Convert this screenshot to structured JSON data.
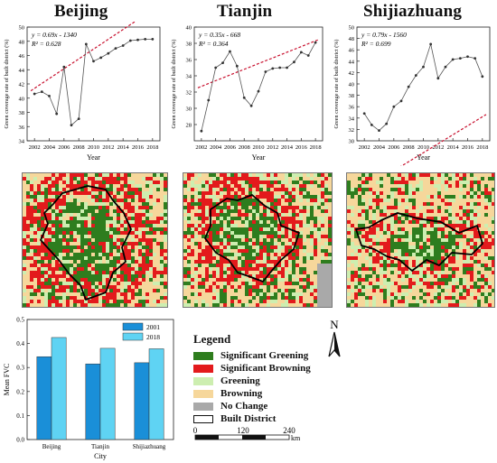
{
  "colors": {
    "sig_greening": "#2e7d1e",
    "sig_browning": "#e31a1c",
    "greening": "#cdeeb0",
    "browning": "#f6d79b",
    "no_change": "#a9a9a9",
    "trend": "#c8102e",
    "series_line": "#555555",
    "bar_2001": "#1a8fd8",
    "bar_2018": "#5fd3f3"
  },
  "panels": [
    {
      "title": "Beijing",
      "equation": "y = 0.69x - 1340",
      "r2": "R² = 0.628"
    },
    {
      "title": "Tianjin",
      "equation": "y = 0.35x - 668",
      "r2": "R² = 0.364"
    },
    {
      "title": "Shijiazhuang",
      "equation": "y = 0.79x - 1560",
      "r2": "R² = 0.699"
    }
  ],
  "chart_data": [
    {
      "type": "line",
      "title": "Beijing",
      "xlabel": "Year",
      "ylabel": "Green coverage rate of built district (%)",
      "xlim": [
        2001,
        2019
      ],
      "ylim": [
        34,
        50
      ],
      "xticks": [
        2002,
        2004,
        2006,
        2008,
        2010,
        2012,
        2014,
        2016,
        2018
      ],
      "yticks": [
        34,
        36,
        38,
        40,
        42,
        44,
        46,
        48,
        50
      ],
      "x": [
        2002,
        2003,
        2004,
        2005,
        2006,
        2007,
        2008,
        2009,
        2010,
        2011,
        2012,
        2013,
        2014,
        2015,
        2016,
        2017,
        2018
      ],
      "y": [
        40.6,
        40.9,
        40.3,
        37.8,
        44.4,
        36.2,
        37.1,
        47.6,
        45.2,
        45.7,
        46.3,
        47.0,
        47.4,
        48.1,
        48.2,
        48.3,
        48.3
      ],
      "trend": {
        "slope": 0.69,
        "intercept": -1340
      },
      "grid": false
    },
    {
      "type": "line",
      "title": "Tianjin",
      "xlabel": "Year",
      "ylabel": "Green coverage rate of built district (%)",
      "xlim": [
        2001,
        2019
      ],
      "ylim": [
        26,
        40
      ],
      "xticks": [
        2002,
        2004,
        2006,
        2008,
        2010,
        2012,
        2014,
        2016,
        2018
      ],
      "yticks": [
        28,
        30,
        32,
        34,
        36,
        38,
        40
      ],
      "x": [
        2002,
        2003,
        2004,
        2005,
        2006,
        2007,
        2008,
        2009,
        2010,
        2011,
        2012,
        2013,
        2014,
        2015,
        2016,
        2017,
        2018
      ],
      "y": [
        27.2,
        31.0,
        35.0,
        35.6,
        37.0,
        35.2,
        31.3,
        30.3,
        32.1,
        34.5,
        34.9,
        35.0,
        35.0,
        35.7,
        36.9,
        36.5,
        38.1
      ],
      "trend": {
        "slope": 0.35,
        "intercept": -668
      },
      "grid": false
    },
    {
      "type": "line",
      "title": "Shijiazhuang",
      "xlabel": "Year",
      "ylabel": "Green coverage rate of built district (%)",
      "xlim": [
        2001,
        2019
      ],
      "ylim": [
        30,
        50
      ],
      "xticks": [
        2002,
        2004,
        2006,
        2008,
        2010,
        2012,
        2014,
        2016,
        2018
      ],
      "yticks": [
        30,
        32,
        34,
        36,
        38,
        40,
        42,
        44,
        46,
        48,
        50
      ],
      "x": [
        2002,
        2003,
        2004,
        2005,
        2006,
        2007,
        2008,
        2009,
        2010,
        2011,
        2012,
        2013,
        2014,
        2015,
        2016,
        2017,
        2018
      ],
      "y": [
        34.8,
        32.8,
        31.8,
        33.0,
        36.0,
        37.0,
        39.5,
        41.5,
        43.0,
        47.0,
        41.0,
        43.0,
        44.3,
        44.5,
        44.8,
        44.5,
        41.3
      ],
      "trend": {
        "slope": 0.79,
        "intercept": -1560
      },
      "grid": false
    },
    {
      "type": "bar",
      "xlabel": "City",
      "ylabel": "Mean FVC",
      "categories": [
        "Beijing",
        "Tianjin",
        "Shijiazhuang"
      ],
      "ylim": [
        0,
        0.5
      ],
      "yticks": [
        0.0,
        0.1,
        0.2,
        0.3,
        0.4,
        0.5
      ],
      "series": [
        {
          "name": "2001",
          "values": [
            0.345,
            0.315,
            0.32
          ]
        },
        {
          "name": "2018",
          "values": [
            0.425,
            0.38,
            0.378
          ]
        }
      ],
      "legend": "top-right"
    }
  ],
  "legend": {
    "title": "Legend",
    "items": [
      {
        "label": "Significant Greening",
        "color_key": "sig_greening"
      },
      {
        "label": "Significant Browning",
        "color_key": "sig_browning"
      },
      {
        "label": "Greening",
        "color_key": "greening"
      },
      {
        "label": "Browning",
        "color_key": "browning"
      },
      {
        "label": "No Change",
        "color_key": "no_change"
      },
      {
        "label": "Built District",
        "color_key": "outline"
      }
    ]
  },
  "scale_bar": {
    "ticks": [
      "0",
      "120",
      "240"
    ],
    "unit": "km"
  },
  "north_arrow": {
    "label": "N"
  }
}
